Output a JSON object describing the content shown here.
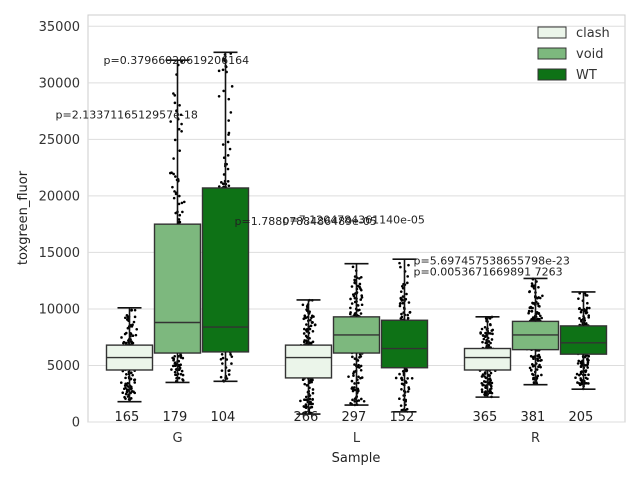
{
  "chart_data": {
    "type": "box",
    "xlabel": "Sample",
    "ylabel": "toxgreen_fluor",
    "ylim": [
      0,
      36000
    ],
    "yticks": [
      0,
      5000,
      10000,
      15000,
      20000,
      25000,
      30000,
      35000
    ],
    "grid": true,
    "legend_placement": "top-right",
    "categories": [
      "G",
      "L",
      "R"
    ],
    "series": [
      {
        "name": "clash",
        "color": "#ebf5ea"
      },
      {
        "name": "void",
        "color": "#7db87e"
      },
      {
        "name": "WT",
        "color": "#0e7216"
      }
    ],
    "boxes": [
      {
        "category": "G",
        "series": "clash",
        "whisker_low": 1800,
        "q1": 4600,
        "median": 5700,
        "q3": 6800,
        "whisker_high": 10100,
        "n": "165"
      },
      {
        "category": "G",
        "series": "void",
        "whisker_low": 3500,
        "q1": 6100,
        "median": 8800,
        "q3": 17500,
        "whisker_high": 32000,
        "n": "179"
      },
      {
        "category": "G",
        "series": "WT",
        "whisker_low": 3600,
        "q1": 6200,
        "median": 8400,
        "q3": 20700,
        "whisker_high": 32700,
        "n": "104"
      },
      {
        "category": "L",
        "series": "clash",
        "whisker_low": 700,
        "q1": 3900,
        "median": 5700,
        "q3": 6800,
        "whisker_high": 10800,
        "n": "266"
      },
      {
        "category": "L",
        "series": "void",
        "whisker_low": 1500,
        "q1": 6100,
        "median": 7700,
        "q3": 9300,
        "whisker_high": 14000,
        "n": "297"
      },
      {
        "category": "L",
        "series": "WT",
        "whisker_low": 900,
        "q1": 4800,
        "median": 6500,
        "q3": 9000,
        "whisker_high": 14400,
        "n": "152"
      },
      {
        "category": "R",
        "series": "clash",
        "whisker_low": 2200,
        "q1": 4600,
        "median": 5700,
        "q3": 6500,
        "whisker_high": 9300,
        "n": "365"
      },
      {
        "category": "R",
        "series": "void",
        "whisker_low": 3300,
        "q1": 6400,
        "median": 7700,
        "q3": 8900,
        "whisker_high": 12700,
        "n": "381"
      },
      {
        "category": "R",
        "series": "WT",
        "whisker_low": 2900,
        "q1": 6000,
        "median": 7000,
        "q3": 8500,
        "whisker_high": 11500,
        "n": "205"
      }
    ],
    "annotations": [
      {
        "text": "p=0.37966020619206164",
        "category": "G",
        "series": "void",
        "y": 32000
      },
      {
        "text": "p=2.1337116512957e-18",
        "category": "G",
        "series": "clash",
        "y": 27200
      },
      {
        "text": "p=1.7880788486489e-05",
        "category": "L",
        "series": "clash",
        "y": 17800
      },
      {
        "text": "p=7.1204784361140e-05",
        "category": "L",
        "series": "void",
        "y": 17900
      },
      {
        "text": "p=5.697457538655798e-23",
        "category": "R",
        "series": "clash",
        "y": 14300
      },
      {
        "text": "p=0.0053671669891 7263",
        "category": "R",
        "series": "clash",
        "y": 13300
      }
    ]
  }
}
